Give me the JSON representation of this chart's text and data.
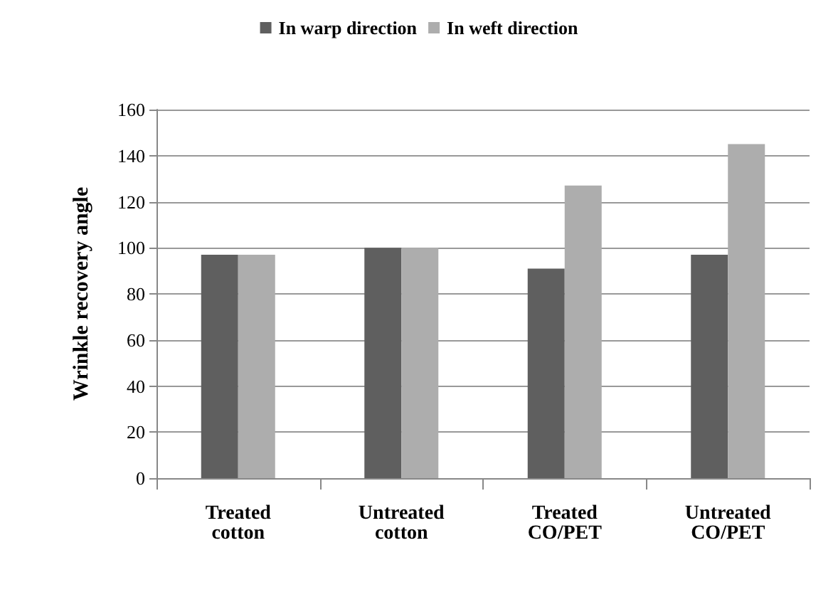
{
  "chart_data": {
    "type": "bar",
    "ylabel": "Wrinkle recovery angle",
    "categories": [
      "Treated\ncotton",
      "Untreated\ncotton",
      "Treated\nCO/PET",
      "Untreated\nCO/PET"
    ],
    "series": [
      {
        "name": "In warp direction",
        "color": "#5f5f5f",
        "values": [
          97,
          100,
          91,
          97
        ]
      },
      {
        "name": "In weft direction",
        "color": "#adadad",
        "values": [
          97,
          100,
          127,
          145
        ]
      }
    ],
    "ylim": [
      0,
      160
    ],
    "yticks": [
      0,
      20,
      40,
      60,
      80,
      100,
      120,
      140,
      160
    ],
    "grid": "y",
    "legend": "top"
  }
}
